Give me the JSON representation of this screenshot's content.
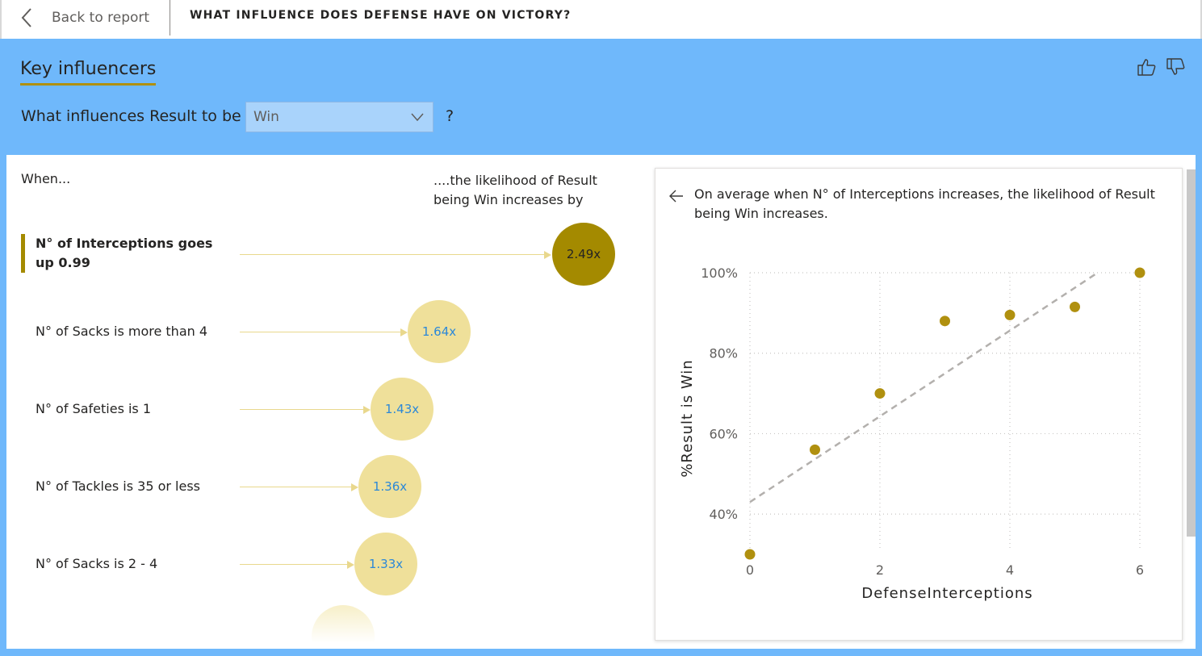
{
  "topbar": {
    "back_label": "Back to report",
    "title": "WHAT INFLUENCE DOES DEFENSE HAVE ON VICTORY?"
  },
  "header": {
    "title": "Key influencers",
    "question_prefix": "What influences Result to be",
    "selected_value": "Win",
    "question_suffix": "?"
  },
  "list": {
    "when_header": "When...",
    "likelihood_header": "....the likelihood of Result being Win increases by",
    "influencers": [
      {
        "label": "N° of Interceptions goes up 0.99",
        "value": "2.49x",
        "selected": true
      },
      {
        "label": "N° of Sacks is more than 4",
        "value": "1.64x",
        "selected": false
      },
      {
        "label": "N° of Safeties is 1",
        "value": "1.43x",
        "selected": false
      },
      {
        "label": "N° of Tackles is 35 or less",
        "value": "1.36x",
        "selected": false
      },
      {
        "label": "N° of Sacks is 2 - 4",
        "value": "1.33x",
        "selected": false
      }
    ]
  },
  "detail": {
    "description": "On average when N° of Interceptions increases, the likelihood of Result being Win increases."
  },
  "colors": {
    "accent": "#a48a00",
    "bubble_light": "#efe09a",
    "frame_blue": "#6fb8fb",
    "value_blue": "#2b88d8"
  },
  "chart_data": {
    "type": "scatter",
    "xlabel": "DefenseInterceptions",
    "ylabel": "%Result is Win",
    "x_ticks": [
      "0",
      "2",
      "4",
      "6"
    ],
    "y_ticks": [
      "40%",
      "60%",
      "80%",
      "100%"
    ],
    "xlim": [
      0,
      6
    ],
    "ylim": [
      30,
      100
    ],
    "grid": true,
    "points": [
      {
        "x": 0,
        "y": 30
      },
      {
        "x": 1,
        "y": 56
      },
      {
        "x": 2,
        "y": 70
      },
      {
        "x": 3,
        "y": 88
      },
      {
        "x": 4,
        "y": 89.5
      },
      {
        "x": 5,
        "y": 91.5
      },
      {
        "x": 6,
        "y": 100
      }
    ],
    "trendline": {
      "style": "dashed",
      "from": {
        "x": 0,
        "y": 43
      },
      "to": {
        "x": 5.35,
        "y": 100
      }
    }
  }
}
